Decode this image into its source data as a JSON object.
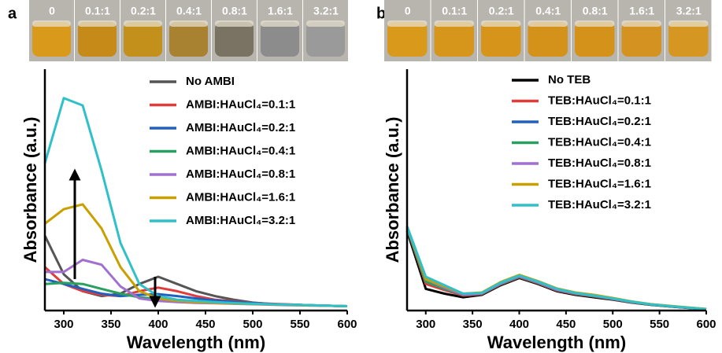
{
  "chart_data": [
    {
      "type": "line",
      "panel_label": "a",
      "vial_labels": [
        "0",
        "0.1:1",
        "0.2:1",
        "0.4:1",
        "0.8:1",
        "1.6:1",
        "3.2:1"
      ],
      "x_label": "Wavelength (nm)",
      "y_label": "Absorbance (a.u.)",
      "xlim": [
        280,
        600
      ],
      "xticks": [
        300,
        350,
        400,
        450,
        500,
        550,
        600
      ],
      "ylim": [
        0,
        1
      ],
      "x": [
        280,
        300,
        320,
        340,
        360,
        380,
        400,
        420,
        440,
        460,
        480,
        500,
        520,
        540,
        560,
        580,
        600
      ],
      "series": [
        {
          "name": "No AMBI",
          "color": "#555555",
          "values": [
            0.31,
            0.15,
            0.08,
            0.06,
            0.07,
            0.11,
            0.14,
            0.11,
            0.08,
            0.06,
            0.045,
            0.033,
            0.027,
            0.024,
            0.022,
            0.02,
            0.018
          ]
        },
        {
          "name": "AMBI:HAuCl₄=0.1:1",
          "color": "#e03c3c",
          "values": [
            0.18,
            0.11,
            0.08,
            0.065,
            0.06,
            0.08,
            0.095,
            0.08,
            0.06,
            0.045,
            0.038,
            0.032,
            0.028,
            0.025,
            0.022,
            0.02,
            0.018
          ]
        },
        {
          "name": "AMBI:HAuCl₄=0.2:1",
          "color": "#2060c0",
          "values": [
            0.13,
            0.11,
            0.09,
            0.07,
            0.06,
            0.065,
            0.068,
            0.06,
            0.05,
            0.042,
            0.036,
            0.031,
            0.027,
            0.024,
            0.022,
            0.02,
            0.018
          ]
        },
        {
          "name": "AMBI:HAuCl₄=0.4:1",
          "color": "#2aa060",
          "values": [
            0.11,
            0.115,
            0.11,
            0.09,
            0.07,
            0.055,
            0.048,
            0.042,
            0.038,
            0.034,
            0.031,
            0.028,
            0.026,
            0.024,
            0.022,
            0.02,
            0.018
          ]
        },
        {
          "name": "AMBI:HAuCl₄=0.8:1",
          "color": "#a070d0",
          "values": [
            0.16,
            0.16,
            0.21,
            0.19,
            0.1,
            0.05,
            0.04,
            0.035,
            0.032,
            0.03,
            0.028,
            0.026,
            0.024,
            0.022,
            0.021,
            0.02,
            0.018
          ]
        },
        {
          "name": "AMBI:HAuCl₄=1.6:1",
          "color": "#c8a000",
          "values": [
            0.36,
            0.42,
            0.44,
            0.34,
            0.18,
            0.08,
            0.05,
            0.04,
            0.035,
            0.032,
            0.029,
            0.027,
            0.025,
            0.023,
            0.021,
            0.02,
            0.018
          ]
        },
        {
          "name": "AMBI:HAuCl₄=3.2:1",
          "color": "#30c0c8",
          "values": [
            0.61,
            0.88,
            0.85,
            0.58,
            0.28,
            0.11,
            0.06,
            0.045,
            0.04,
            0.035,
            0.031,
            0.028,
            0.026,
            0.024,
            0.022,
            0.02,
            0.018
          ]
        }
      ]
    },
    {
      "type": "line",
      "panel_label": "b",
      "vial_labels": [
        "0",
        "0.1:1",
        "0.2:1",
        "0.4:1",
        "0.8:1",
        "1.6:1",
        "3.2:1"
      ],
      "x_label": "Wavelength (nm)",
      "y_label": "Absorbance (a.u.)",
      "xlim": [
        280,
        600
      ],
      "xticks": [
        300,
        350,
        400,
        450,
        500,
        550,
        600
      ],
      "ylim": [
        0,
        1
      ],
      "x": [
        280,
        300,
        320,
        340,
        360,
        380,
        400,
        420,
        440,
        460,
        480,
        500,
        520,
        540,
        560,
        580,
        600
      ],
      "series": [
        {
          "name": "No TEB",
          "color": "#000000",
          "values": [
            0.33,
            0.09,
            0.07,
            0.055,
            0.065,
            0.105,
            0.135,
            0.11,
            0.08,
            0.065,
            0.055,
            0.045,
            0.033,
            0.024,
            0.017,
            0.011,
            0.005
          ]
        },
        {
          "name": "TEB:HAuCl₄=0.1:1",
          "color": "#e03c3c",
          "values": [
            0.34,
            0.11,
            0.085,
            0.062,
            0.068,
            0.108,
            0.138,
            0.113,
            0.083,
            0.068,
            0.058,
            0.047,
            0.034,
            0.025,
            0.018,
            0.012,
            0.006
          ]
        },
        {
          "name": "TEB:HAuCl₄=0.2:1",
          "color": "#2060c0",
          "values": [
            0.34,
            0.12,
            0.09,
            0.065,
            0.07,
            0.11,
            0.14,
            0.115,
            0.085,
            0.07,
            0.06,
            0.048,
            0.035,
            0.025,
            0.018,
            0.012,
            0.006
          ]
        },
        {
          "name": "TEB:HAuCl₄=0.4:1",
          "color": "#2aa060",
          "values": [
            0.34,
            0.12,
            0.09,
            0.065,
            0.07,
            0.11,
            0.14,
            0.115,
            0.086,
            0.07,
            0.06,
            0.048,
            0.035,
            0.025,
            0.018,
            0.012,
            0.006
          ]
        },
        {
          "name": "TEB:HAuCl₄=0.8:1",
          "color": "#a070d0",
          "values": [
            0.345,
            0.13,
            0.095,
            0.066,
            0.071,
            0.112,
            0.142,
            0.117,
            0.087,
            0.071,
            0.061,
            0.049,
            0.036,
            0.026,
            0.019,
            0.012,
            0.006
          ]
        },
        {
          "name": "TEB:HAuCl₄=1.6:1",
          "color": "#c8a000",
          "values": [
            0.35,
            0.13,
            0.1,
            0.07,
            0.075,
            0.118,
            0.148,
            0.122,
            0.092,
            0.075,
            0.065,
            0.052,
            0.038,
            0.027,
            0.02,
            0.013,
            0.007
          ]
        },
        {
          "name": "TEB:HAuCl₄=3.2:1",
          "color": "#30c0c8",
          "values": [
            0.35,
            0.14,
            0.105,
            0.07,
            0.073,
            0.115,
            0.145,
            0.12,
            0.09,
            0.073,
            0.062,
            0.05,
            0.037,
            0.026,
            0.019,
            0.012,
            0.006
          ]
        }
      ]
    }
  ]
}
